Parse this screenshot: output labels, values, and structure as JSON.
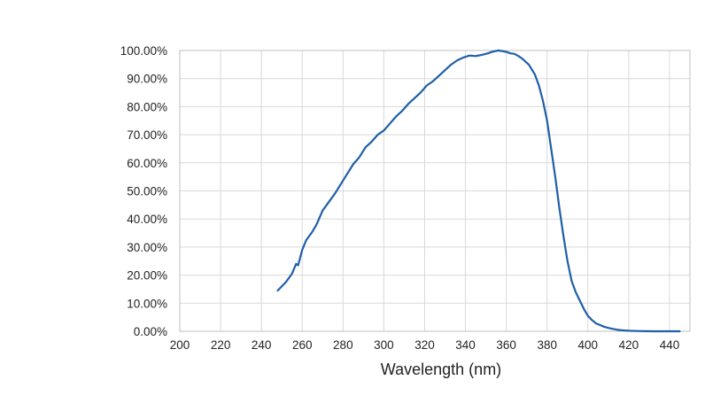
{
  "chart_data": {
    "type": "line",
    "title": "",
    "xlabel": "Wavelength (nm)",
    "ylabel": "",
    "xlim": [
      200,
      450
    ],
    "ylim": [
      0,
      100
    ],
    "xticks": [
      200,
      220,
      240,
      260,
      280,
      300,
      320,
      340,
      360,
      380,
      400,
      420,
      440
    ],
    "yticks": [
      0,
      10,
      20,
      30,
      40,
      50,
      60,
      70,
      80,
      90,
      100
    ],
    "yticklabels": [
      "0.00%",
      "10.00%",
      "20.00%",
      "30.00%",
      "40.00%",
      "50.00%",
      "60.00%",
      "70.00%",
      "80.00%",
      "90.00%",
      "100.00%"
    ],
    "grid": true,
    "line_color": "#1f5fa8",
    "series": [
      {
        "x": [
          248,
          252,
          255,
          257,
          258,
          260,
          262,
          265,
          267,
          270,
          273,
          276,
          279,
          282,
          285,
          288,
          291,
          294,
          297,
          300,
          303,
          306,
          309,
          312,
          315,
          318,
          321,
          324,
          327,
          330,
          333,
          336,
          339,
          342,
          345,
          347,
          349,
          351,
          353,
          356,
          358,
          360,
          362,
          364,
          366,
          368,
          371,
          374,
          376,
          378,
          380,
          382,
          384,
          386,
          388,
          390,
          392,
          394,
          396,
          398,
          400,
          402,
          404,
          406,
          408,
          410,
          412,
          414,
          416,
          418,
          420,
          424,
          428,
          432,
          436,
          440,
          445
        ],
        "y": [
          14.5,
          17.5,
          20.5,
          24.0,
          23.5,
          29.0,
          32.5,
          35.5,
          38.0,
          43.0,
          46.0,
          49.0,
          52.5,
          56.0,
          59.5,
          62.0,
          65.5,
          67.5,
          70.0,
          71.5,
          74.0,
          76.5,
          78.5,
          81.0,
          83.0,
          85.0,
          87.5,
          89.0,
          91.0,
          93.0,
          95.0,
          96.5,
          97.5,
          98.2,
          98.0,
          98.3,
          98.6,
          99.0,
          99.5,
          100.0,
          99.8,
          99.5,
          99.0,
          98.8,
          98.0,
          97.0,
          95.0,
          91.5,
          87.5,
          82.0,
          75.0,
          65.0,
          55.0,
          44.0,
          34.0,
          25.0,
          18.0,
          14.0,
          11.0,
          8.0,
          5.5,
          4.0,
          2.8,
          2.2,
          1.6,
          1.2,
          0.9,
          0.6,
          0.4,
          0.3,
          0.2,
          0.1,
          0.05,
          0.0,
          0.0,
          0.0,
          0.0
        ]
      }
    ]
  }
}
